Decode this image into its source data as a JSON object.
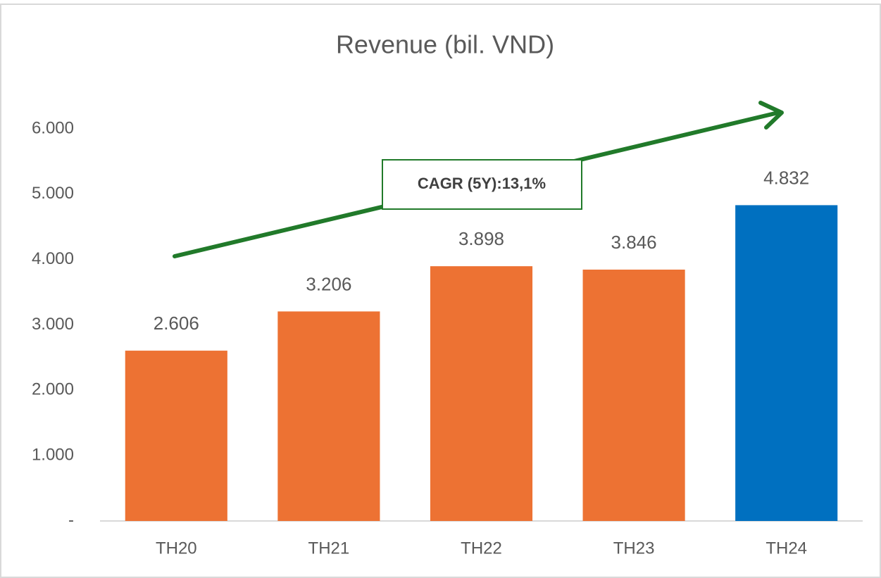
{
  "chart_data": {
    "type": "bar",
    "title": "Revenue (bil. VND)",
    "categories": [
      "TH20",
      "TH21",
      "TH22",
      "TH23",
      "TH24"
    ],
    "values": [
      2606,
      3206,
      3898,
      3846,
      4832
    ],
    "value_labels": [
      "2.606",
      "3.206",
      "3.898",
      "3.846",
      "4.832"
    ],
    "colors": [
      "#ed7233",
      "#ed7233",
      "#ed7233",
      "#ed7233",
      "#0070c0"
    ],
    "annotation": "CAGR (5Y):13,1%",
    "ylim": [
      0,
      6000
    ],
    "yticks": [
      {
        "value": 0,
        "label": "-"
      },
      {
        "value": 1000,
        "label": "1.000"
      },
      {
        "value": 2000,
        "label": "2.000"
      },
      {
        "value": 3000,
        "label": "3.000"
      },
      {
        "value": 4000,
        "label": "4.000"
      },
      {
        "value": 5000,
        "label": "5.000"
      },
      {
        "value": 6000,
        "label": "6.000"
      }
    ],
    "grid": false
  }
}
